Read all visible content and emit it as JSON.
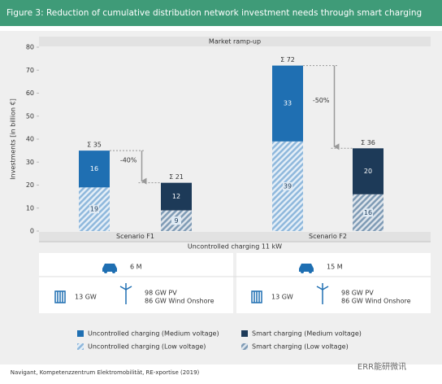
{
  "chart_data": {
    "type": "bar",
    "stacked": true,
    "title": "Figure 3: Reduction of cumulative distribution network investment needs through smart charging",
    "subtitle": "Market ramp-up",
    "y_label": "Investments [in billion €]",
    "x_label": "Uncontrolled charging 11 kW",
    "categories": [
      null,
      null,
      null,
      null
    ],
    "groups": [
      "Scenario F1",
      "Scenario F2"
    ],
    "series": [
      {
        "name": "Uncontrolled charging (Low voltage)",
        "color": "#8fb8dc",
        "hatch": true,
        "values": [
          19,
          null,
          39,
          null
        ]
      },
      {
        "name": "Uncontrolled charging (Medium voltage)",
        "color": "#1f6fb2",
        "hatch": false,
        "values": [
          16,
          null,
          33,
          null
        ]
      },
      {
        "name": "Smart charging (Low voltage)",
        "color": "#7f9bb5",
        "hatch": true,
        "values": [
          null,
          9,
          null,
          16
        ]
      },
      {
        "name": "Smart charging (Medium voltage)",
        "color": "#1d3a58",
        "hatch": false,
        "values": [
          null,
          12,
          null,
          20
        ]
      }
    ],
    "totals": [
      "Σ 35",
      "Σ 21",
      "Σ 72",
      "Σ 36"
    ],
    "reductions": [
      "-40%",
      "-50%"
    ],
    "ylim": [
      0,
      80
    ],
    "yticks": [
      0,
      10,
      20,
      30,
      40,
      50,
      60,
      70,
      80
    ],
    "grid": false,
    "scenario_info": [
      {
        "vehicles": "6 M",
        "storage": "13 GW",
        "pv": "98 GW PV",
        "wind": "86 GW Wind Onshore"
      },
      {
        "vehicles": "15 M",
        "storage": "13 GW",
        "pv": "98 GW PV",
        "wind": "86 GW Wind Onshore"
      }
    ],
    "source": "Navigant, Kompetenzzentrum Elektromobilität, RE-xportise (2019)",
    "watermark": "ERR能研微讯"
  }
}
